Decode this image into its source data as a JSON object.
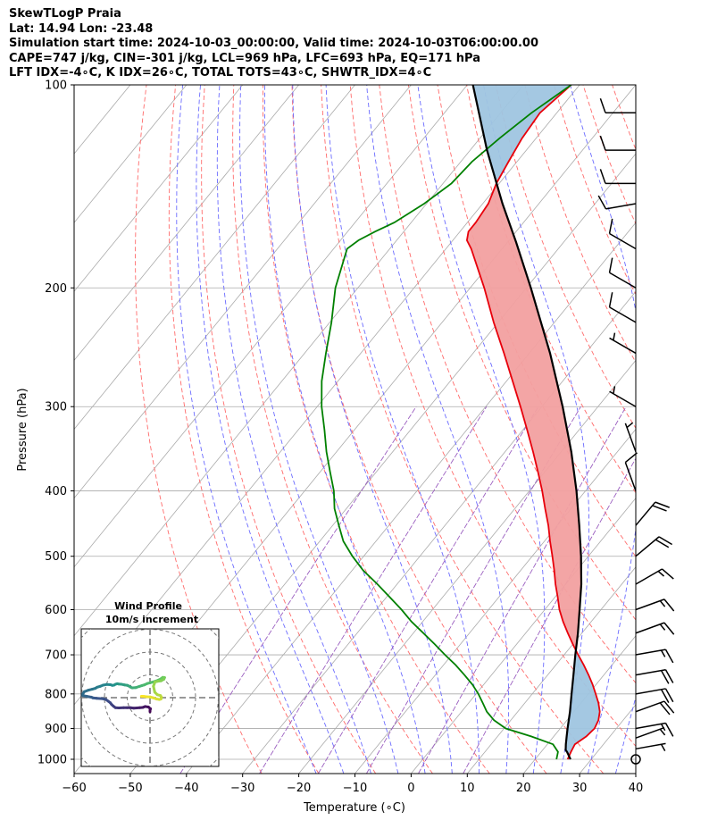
{
  "header": {
    "title": "SkewTLogP Praia",
    "location": "Lat: 14.94   Lon: -23.48",
    "times": "Simulation start time: 2024-10-03_00:00:00, Valid time: 2024-10-03T06:00:00.00",
    "indices_1": "CAPE=747 j/kg, CIN=-301 j/kg, LCL=969 hPa, LFC=693 hPa, EQ=171 hPa",
    "indices_2": "LFT IDX=-4∘C, K IDX=26∘C, TOTAL TOTS=43∘C, SHWTR_IDX=4∘C"
  },
  "chart_data": [
    {
      "type": "line",
      "subtype": "skew-t log-p",
      "xlabel": "Temperature (∘C)",
      "ylabel": "Pressure (hPa)",
      "xlim": [
        -60,
        40
      ],
      "ylim": [
        1050,
        100
      ],
      "y_scale": "log",
      "x_ticks": [
        -60,
        -50,
        -40,
        -30,
        -20,
        -10,
        0,
        10,
        20,
        30,
        40
      ],
      "x_tick_labels": [
        "−60",
        "−50",
        "−40",
        "−30",
        "−20",
        "−10",
        "0",
        "10",
        "20",
        "30",
        "40"
      ],
      "y_ticks": [
        1000,
        900,
        800,
        700,
        600,
        500,
        400,
        300,
        200,
        100
      ],
      "y_tick_labels": [
        "1000",
        "900",
        "800",
        "700",
        "600",
        "500",
        "400",
        "300",
        "200",
        "100"
      ],
      "grid": true,
      "colors": {
        "temperature": "#e8000b",
        "dewpoint": "#008000",
        "parcel": "#000000",
        "cape_fill": "#f2a0a0",
        "cin_fill": "#9fc5e0",
        "dry_adiabat": "#ff6b6b",
        "moist_adiabat": "#6b6bff",
        "mixing_ratio": "#9b5fc0",
        "isotherm": "#aaaaaa"
      },
      "series": [
        {
          "role": "temperature",
          "pressure": [
            1000,
            975,
            950,
            925,
            900,
            875,
            850,
            825,
            800,
            775,
            750,
            725,
            700,
            675,
            650,
            625,
            600,
            575,
            550,
            525,
            500,
            475,
            450,
            425,
            400,
            375,
            350,
            325,
            300,
            275,
            250,
            225,
            200,
            175,
            170,
            165,
            160,
            150,
            140,
            130,
            120,
            110,
            100
          ],
          "values": [
            25.8,
            25.3,
            24.9,
            25.8,
            26.1,
            25.6,
            24.6,
            23.1,
            21.3,
            19.4,
            17.3,
            15.0,
            12.5,
            10.0,
            7.5,
            5.0,
            2.6,
            0.5,
            -1.8,
            -4.0,
            -6.4,
            -9.0,
            -11.6,
            -14.6,
            -17.7,
            -21.2,
            -25.0,
            -29.2,
            -33.8,
            -38.9,
            -44.5,
            -50.8,
            -57.5,
            -65.5,
            -67.5,
            -68.5,
            -68.5,
            -69.0,
            -70.5,
            -71.5,
            -72.5,
            -73.0,
            -71.5
          ]
        },
        {
          "role": "dewpoint",
          "pressure": [
            1000,
            975,
            950,
            925,
            900,
            875,
            850,
            825,
            800,
            775,
            750,
            725,
            700,
            675,
            650,
            625,
            600,
            575,
            550,
            525,
            500,
            475,
            450,
            425,
            400,
            375,
            350,
            325,
            300,
            275,
            250,
            225,
            200,
            175,
            170,
            165,
            160,
            150,
            140,
            130,
            120,
            110,
            100
          ],
          "values": [
            23.8,
            23.0,
            21.0,
            16.0,
            10.3,
            7.0,
            4.5,
            2.5,
            0.4,
            -2.0,
            -4.8,
            -7.8,
            -11.2,
            -14.6,
            -18.2,
            -22.0,
            -25.5,
            -29.4,
            -33.5,
            -38.0,
            -42.0,
            -45.8,
            -48.9,
            -52.1,
            -54.8,
            -58.2,
            -61.8,
            -65.3,
            -69.2,
            -72.9,
            -76.2,
            -79.7,
            -84.0,
            -87.6,
            -86.8,
            -85.1,
            -83.0,
            -80.4,
            -78.5,
            -78.0,
            -76.5,
            -74.5,
            -71.5
          ]
        },
        {
          "role": "parcel",
          "pressure": [
            1000,
            975,
            969,
            950,
            925,
            900,
            850,
            800,
            750,
            700,
            650,
            600,
            550,
            500,
            450,
            400,
            350,
            300,
            250,
            200,
            171,
            150,
            125,
            100
          ],
          "values": [
            26.3,
            24.6,
            24.1,
            23.3,
            22.3,
            21.3,
            19.3,
            17.0,
            14.6,
            12.0,
            9.3,
            6.2,
            2.8,
            -1.3,
            -6.1,
            -11.6,
            -18.2,
            -26.3,
            -36.3,
            -49.2,
            -58.5,
            -66.5,
            -77.0,
            -89.0
          ]
        }
      ],
      "wind_barbs": {
        "pressure": [
          1000,
          965,
          930,
          900,
          850,
          800,
          750,
          700,
          650,
          600,
          550,
          500,
          450,
          400,
          350,
          300,
          250,
          225,
          200,
          175,
          150,
          140,
          125,
          110
        ],
        "speed_kt": [
          0,
          5,
          5,
          15,
          20,
          20,
          20,
          15,
          15,
          15,
          15,
          20,
          20,
          10,
          5,
          5,
          5,
          10,
          10,
          10,
          10,
          10,
          10,
          10
        ],
        "direction_deg": [
          0,
          80,
          70,
          80,
          70,
          80,
          80,
          80,
          70,
          70,
          60,
          50,
          40,
          340,
          340,
          300,
          300,
          300,
          300,
          300,
          260,
          270,
          270,
          270
        ]
      }
    },
    {
      "type": "line",
      "subtype": "hodograph",
      "title": "Wind Profile",
      "subtitle": "10m/s increment",
      "ring_increment_ms": 10,
      "u": [
        0.0,
        0.0,
        0.2,
        -0.7,
        -2.1,
        -3.2,
        -4.5,
        -5.8,
        -7.1,
        -8.6,
        -10.1,
        -11.6,
        -13.7,
        -15.2,
        -16.0,
        -16.9,
        -17.4,
        -18.3,
        -19.4,
        -20.6,
        -23.4,
        -25.1,
        -25.7,
        -26.9,
        -27.8,
        -29.5,
        -29.5,
        -28.9,
        -27.0,
        -25.4,
        -24.0,
        -23.2,
        -21.8,
        -20.6,
        -18.9,
        -17.4,
        -16.6,
        -15.8,
        -15.1,
        -14.4,
        -13.8,
        -12.7,
        -11.2,
        -9.9,
        -9.1,
        -8.3,
        -7.8,
        -6.3,
        -4.8,
        -3.5,
        -2.5,
        -1.2,
        0.6,
        2.0,
        3.4,
        4.5,
        5.2,
        5.6,
        6.4,
        6.1,
        4.9,
        3.4,
        2.2,
        1.5,
        2.1,
        3.2,
        4.6,
        5.0,
        4.8,
        4.1,
        2.9,
        1.5,
        0.0,
        -1.6,
        -2.9,
        -3.8
      ],
      "v": [
        -6.2,
        -5.6,
        -4.9,
        -4.1,
        -3.9,
        -4.3,
        -4.4,
        -4.5,
        -4.6,
        -4.4,
        -4.4,
        -4.4,
        -4.5,
        -4.4,
        -3.8,
        -3.0,
        -2.3,
        -1.6,
        -0.8,
        -0.5,
        -0.3,
        -0.1,
        0.2,
        0.4,
        0.6,
        0.9,
        1.6,
        2.6,
        3.3,
        3.7,
        4.1,
        4.6,
        5.0,
        5.5,
        5.8,
        5.7,
        5.4,
        5.5,
        5.9,
        6.1,
        6.0,
        5.9,
        5.6,
        5.4,
        5.0,
        4.5,
        4.3,
        4.4,
        4.9,
        5.3,
        5.6,
        6.2,
        6.7,
        7.1,
        7.6,
        8.1,
        8.6,
        8.9,
        8.8,
        8.1,
        7.4,
        7.2,
        6.9,
        5.0,
        2.4,
        1.3,
        0.9,
        0.2,
        -0.6,
        -0.8,
        -0.6,
        -0.1,
        0.3,
        0.4,
        0.6,
        0.6
      ]
    }
  ]
}
